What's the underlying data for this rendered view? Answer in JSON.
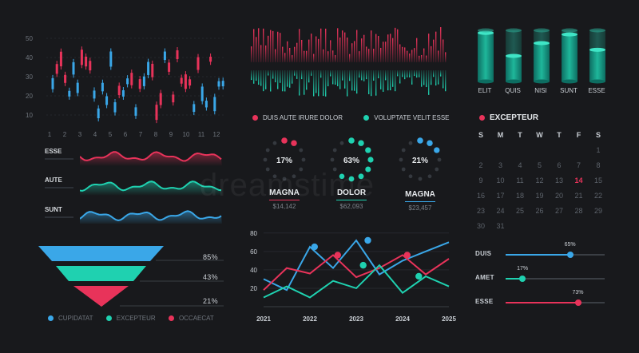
{
  "colors": {
    "red": "#e8335a",
    "teal": "#1fd1b0",
    "blue": "#3aa7e8",
    "bg": "#18191c",
    "grid": "#2b2e33"
  },
  "candles": {
    "y_ticks": [
      "50",
      "40",
      "30",
      "20",
      "10"
    ],
    "x_ticks": [
      "1",
      "2",
      "3",
      "4",
      "5",
      "6",
      "7",
      "8",
      "9",
      "10",
      "11",
      "12"
    ]
  },
  "waves": [
    {
      "label": "ESSE",
      "color": "#e8335a"
    },
    {
      "label": "AUTE",
      "color": "#1fd1b0"
    },
    {
      "label": "SUNT",
      "color": "#3aa7e8"
    }
  ],
  "funnel": {
    "rows": [
      {
        "value": "85%",
        "color": "#3aa7e8"
      },
      {
        "value": "43%",
        "color": "#1fd1b0"
      },
      {
        "value": "21%",
        "color": "#e8335a"
      }
    ],
    "legend": [
      {
        "label": "CUPIDATAT",
        "color": "#3aa7e8"
      },
      {
        "label": "EXCEPTEUR",
        "color": "#1fd1b0"
      },
      {
        "label": "OCCAECAT",
        "color": "#e8335a"
      }
    ]
  },
  "audio_legend": [
    {
      "label": "DUIS AUTE IRURE DOLOR",
      "color": "#e8335a"
    },
    {
      "label": "VOLUPTATE VELIT ESSE",
      "color": "#1fd1b0"
    }
  ],
  "donuts": [
    {
      "percent": "17%",
      "fraction": 0.17,
      "title": "MAGNA",
      "value": "$14,142",
      "color": "#e8335a"
    },
    {
      "percent": "63%",
      "fraction": 0.63,
      "title": "DOLOR",
      "value": "$62,093",
      "color": "#1fd1b0"
    },
    {
      "percent": "21%",
      "fraction": 0.21,
      "title": "MAGNA",
      "value": "$23,457",
      "color": "#3aa7e8"
    }
  ],
  "chart_data": {
    "type": "line",
    "x": [
      2021,
      2021.5,
      2022,
      2022.5,
      2023,
      2023.5,
      2024,
      2024.5,
      2025
    ],
    "x_ticks": [
      "2021",
      "2022",
      "2023",
      "2024",
      "2025"
    ],
    "y_ticks": [
      "80",
      "60",
      "40",
      "20"
    ],
    "ylim": [
      0,
      85
    ],
    "series": [
      {
        "color": "#3aa7e8",
        "values": [
          30,
          18,
          65,
          42,
          72,
          35,
          50,
          60,
          70
        ]
      },
      {
        "color": "#e8335a",
        "values": [
          18,
          42,
          36,
          56,
          32,
          42,
          56,
          35,
          52
        ]
      },
      {
        "color": "#1fd1b0",
        "values": [
          10,
          22,
          10,
          28,
          20,
          45,
          15,
          33,
          22
        ]
      }
    ],
    "markers": [
      {
        "series": 0,
        "x": 2022.1,
        "y": 65
      },
      {
        "series": 0,
        "x": 2023.25,
        "y": 72
      },
      {
        "series": 1,
        "x": 2022.6,
        "y": 56
      },
      {
        "series": 1,
        "x": 2024.1,
        "y": 56
      },
      {
        "series": 2,
        "x": 2023.15,
        "y": 45
      },
      {
        "series": 2,
        "x": 2024.35,
        "y": 33
      }
    ]
  },
  "cylinders": [
    {
      "label": "ELIT",
      "level": 0.95
    },
    {
      "label": "QUIS",
      "level": 0.5
    },
    {
      "label": "NISI",
      "level": 0.75
    },
    {
      "label": "SUNT",
      "level": 0.92
    },
    {
      "label": "ESSE",
      "level": 0.62
    }
  ],
  "calendar": {
    "title": "EXCEPTEUR",
    "days": [
      "S",
      "M",
      "T",
      "W",
      "T",
      "F",
      "S"
    ],
    "start_offset": 6,
    "count": 31,
    "highlight": "14"
  },
  "sliders": [
    {
      "label": "DUIS",
      "percent": "65%",
      "fraction": 0.65,
      "color": "#3aa7e8"
    },
    {
      "label": "AMET",
      "percent": "17%",
      "fraction": 0.17,
      "color": "#1fd1b0"
    },
    {
      "label": "ESSE",
      "percent": "73%",
      "fraction": 0.73,
      "color": "#e8335a"
    }
  ],
  "watermark": "dreamstime"
}
